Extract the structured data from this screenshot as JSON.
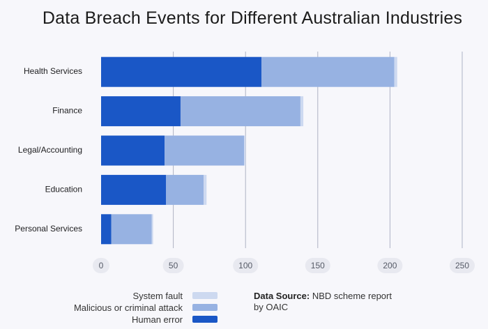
{
  "chart_data": {
    "type": "bar",
    "orientation": "horizontal",
    "stacked": true,
    "title": "Data Breach Events for Different Australian Industries",
    "categories": [
      "Health Services",
      "Finance",
      "Legal/Accounting",
      "Education",
      "Personal Services"
    ],
    "series": [
      {
        "name": "Human error",
        "color": "#1a57c6",
        "values": [
          111,
          55,
          44,
          45,
          7
        ]
      },
      {
        "name": "Malicious or criminal attack",
        "color": "#97b2e2",
        "values": [
          92,
          83,
          55,
          26,
          28
        ]
      },
      {
        "name": "System fault",
        "color": "#cdd9f0",
        "values": [
          2,
          2,
          1,
          2,
          1
        ]
      }
    ],
    "xticks": [
      0,
      50,
      100,
      150,
      200,
      250
    ],
    "xlim": [
      0,
      250
    ],
    "grid": true,
    "legend_position": "bottom-left"
  },
  "legend": {
    "items": [
      {
        "label": "System fault",
        "color": "#cdd9f0"
      },
      {
        "label": "Malicious or criminal attack",
        "color": "#97b2e2"
      },
      {
        "label": "Human error",
        "color": "#1a57c6"
      }
    ]
  },
  "source": {
    "label": "Data Source:",
    "text": "NBD scheme report by OAIC"
  }
}
